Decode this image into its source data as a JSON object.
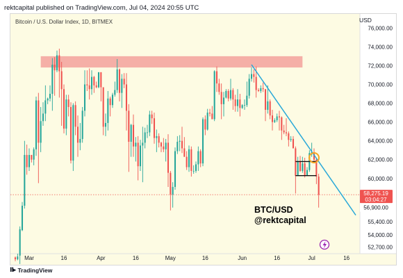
{
  "header": {
    "publish_line": "rektcapital published on TradingView.com, Jul 04, 2024 20:55 UTC"
  },
  "chart_header": {
    "symbol_line": "Bitcoin / U.S. Dollar Index, 1D, BITMEX",
    "currency": "USD"
  },
  "footer": {
    "brand": "TradingView",
    "logo_icon": "tradingview-logo-icon"
  },
  "colors": {
    "bullish": "#26a69a",
    "bearish": "#ef5350",
    "resistance_zone": "#f4a6a0",
    "trendline": "#29a8d8",
    "annotation_circle": "#f5a623",
    "price_label_bg": "#ef5350",
    "chart_background": "#fdfbe3",
    "lightning_badge": "#9c27b0"
  },
  "chart_data": {
    "type": "candlestick",
    "title": "Bitcoin / U.S. Dollar Index, 1D, BITMEX",
    "currency": "USD",
    "x_tick_labels": [
      "Mar",
      "16",
      "Apr",
      "16",
      "May",
      "16",
      "Jun",
      "16",
      "Jul",
      "16"
    ],
    "x_tick_dates": [
      "2024-03-01",
      "2024-03-16",
      "2024-04-01",
      "2024-04-16",
      "2024-05-01",
      "2024-05-16",
      "2024-06-01",
      "2024-06-16",
      "2024-07-01",
      "2024-07-16"
    ],
    "x_range": [
      "2024-02-24",
      "2024-07-20"
    ],
    "y_tick_labels": [
      "76,000.00",
      "74,000.00",
      "72,000.00",
      "70,000.00",
      "68,000.00",
      "66,000.00",
      "64,000.00",
      "62,000.00",
      "60,000.00",
      "55,400.00",
      "54,000.00",
      "52,700.00"
    ],
    "y_tick_values": [
      76000,
      74000,
      72000,
      70000,
      68000,
      66000,
      64000,
      62000,
      60000,
      55400,
      54000,
      52700
    ],
    "ylim": [
      52000,
      77500
    ],
    "grid": false,
    "current_price": {
      "price_label": "58,275.19",
      "countdown": "03:04:27",
      "value": 58275.19
    },
    "low_label": {
      "label": "56,900.00",
      "value": 56900
    },
    "resistance_zone": {
      "y_low": 71800,
      "y_high": 73000,
      "x_start": "2024-03-06",
      "x_end": "2024-06-27"
    },
    "trendline": {
      "start": {
        "date": "2024-06-05",
        "price": 72100
      },
      "end": {
        "date": "2024-07-20",
        "price": 56100
      }
    },
    "range_box": {
      "top": 61800,
      "bottom": 60300,
      "x_start": "2024-06-24",
      "x_end": "2024-07-03"
    },
    "highlight_circle": {
      "date": "2024-07-02",
      "price": 62200
    },
    "annotations": [
      "BTC/USD",
      "@rektcapital"
    ],
    "candles": [
      {
        "d": "2024-02-24",
        "o": 51600,
        "h": 51700,
        "l": 51200,
        "c": 51400
      },
      {
        "d": "2024-02-25",
        "o": 51400,
        "h": 52000,
        "l": 51300,
        "c": 51700
      },
      {
        "d": "2024-02-26",
        "o": 51800,
        "h": 54900,
        "l": 50900,
        "c": 54600
      },
      {
        "d": "2024-02-27",
        "o": 54500,
        "h": 57500,
        "l": 54400,
        "c": 57100
      },
      {
        "d": "2024-02-28",
        "o": 57100,
        "h": 64000,
        "l": 56800,
        "c": 62500
      },
      {
        "d": "2024-02-29",
        "o": 62500,
        "h": 63600,
        "l": 60400,
        "c": 61200
      },
      {
        "d": "2024-03-01",
        "o": 61200,
        "h": 63200,
        "l": 60800,
        "c": 62500
      },
      {
        "d": "2024-03-02",
        "o": 62500,
        "h": 62500,
        "l": 61700,
        "c": 62000
      },
      {
        "d": "2024-03-03",
        "o": 62000,
        "h": 63300,
        "l": 61400,
        "c": 63100
      },
      {
        "d": "2024-03-04",
        "o": 63100,
        "h": 68700,
        "l": 62400,
        "c": 68300
      },
      {
        "d": "2024-03-05",
        "o": 68300,
        "h": 69100,
        "l": 59500,
        "c": 63800
      },
      {
        "d": "2024-03-06",
        "o": 63800,
        "h": 67600,
        "l": 62800,
        "c": 66100
      },
      {
        "d": "2024-03-07",
        "o": 66100,
        "h": 68100,
        "l": 65600,
        "c": 66900
      },
      {
        "d": "2024-03-08",
        "o": 66900,
        "h": 69900,
        "l": 66100,
        "c": 68300
      },
      {
        "d": "2024-03-09",
        "o": 68300,
        "h": 68600,
        "l": 67900,
        "c": 68500
      },
      {
        "d": "2024-03-10",
        "o": 68500,
        "h": 69900,
        "l": 68200,
        "c": 69000
      },
      {
        "d": "2024-03-11",
        "o": 69000,
        "h": 72800,
        "l": 67200,
        "c": 72100
      },
      {
        "d": "2024-03-12",
        "o": 72100,
        "h": 72900,
        "l": 68800,
        "c": 71500
      },
      {
        "d": "2024-03-13",
        "o": 71500,
        "h": 73600,
        "l": 71300,
        "c": 73100
      },
      {
        "d": "2024-03-14",
        "o": 73100,
        "h": 73800,
        "l": 68600,
        "c": 71400
      },
      {
        "d": "2024-03-15",
        "o": 71400,
        "h": 72400,
        "l": 65600,
        "c": 69500
      },
      {
        "d": "2024-03-16",
        "o": 69500,
        "h": 70000,
        "l": 64800,
        "c": 65300
      },
      {
        "d": "2024-03-17",
        "o": 65300,
        "h": 68900,
        "l": 64600,
        "c": 68400
      },
      {
        "d": "2024-03-18",
        "o": 68400,
        "h": 68900,
        "l": 66600,
        "c": 67600
      },
      {
        "d": "2024-03-19",
        "o": 67600,
        "h": 68100,
        "l": 61600,
        "c": 61900
      },
      {
        "d": "2024-03-20",
        "o": 61900,
        "h": 68000,
        "l": 60800,
        "c": 67800
      },
      {
        "d": "2024-03-21",
        "o": 67800,
        "h": 68200,
        "l": 64600,
        "c": 65500
      },
      {
        "d": "2024-03-22",
        "o": 65500,
        "h": 66700,
        "l": 62300,
        "c": 63800
      },
      {
        "d": "2024-03-23",
        "o": 63800,
        "h": 65900,
        "l": 63000,
        "c": 64200
      },
      {
        "d": "2024-03-24",
        "o": 64200,
        "h": 67600,
        "l": 63800,
        "c": 67200
      },
      {
        "d": "2024-03-25",
        "o": 67200,
        "h": 71500,
        "l": 66600,
        "c": 70000
      },
      {
        "d": "2024-03-26",
        "o": 70000,
        "h": 71500,
        "l": 69300,
        "c": 69900
      },
      {
        "d": "2024-03-27",
        "o": 69900,
        "h": 71700,
        "l": 68400,
        "c": 69500
      },
      {
        "d": "2024-03-28",
        "o": 69500,
        "h": 71500,
        "l": 68900,
        "c": 70800
      },
      {
        "d": "2024-03-29",
        "o": 70800,
        "h": 70900,
        "l": 69100,
        "c": 69900
      },
      {
        "d": "2024-03-30",
        "o": 69900,
        "h": 70300,
        "l": 69600,
        "c": 69700
      },
      {
        "d": "2024-03-31",
        "o": 69700,
        "h": 71300,
        "l": 69600,
        "c": 71300
      },
      {
        "d": "2024-04-01",
        "o": 71300,
        "h": 71300,
        "l": 68200,
        "c": 69700
      },
      {
        "d": "2024-04-02",
        "o": 69700,
        "h": 69700,
        "l": 64600,
        "c": 65500
      },
      {
        "d": "2024-04-03",
        "o": 65500,
        "h": 66900,
        "l": 64500,
        "c": 65900
      },
      {
        "d": "2024-04-04",
        "o": 65900,
        "h": 69300,
        "l": 65100,
        "c": 68500
      },
      {
        "d": "2024-04-05",
        "o": 68500,
        "h": 68700,
        "l": 66600,
        "c": 67800
      },
      {
        "d": "2024-04-06",
        "o": 67800,
        "h": 69100,
        "l": 67500,
        "c": 68900
      },
      {
        "d": "2024-04-07",
        "o": 68900,
        "h": 70300,
        "l": 68700,
        "c": 69400
      },
      {
        "d": "2024-04-08",
        "o": 69400,
        "h": 72700,
        "l": 69100,
        "c": 71600
      },
      {
        "d": "2024-04-09",
        "o": 71600,
        "h": 71700,
        "l": 68200,
        "c": 69100
      },
      {
        "d": "2024-04-10",
        "o": 69100,
        "h": 71100,
        "l": 67500,
        "c": 70600
      },
      {
        "d": "2024-04-11",
        "o": 70600,
        "h": 71200,
        "l": 69600,
        "c": 70000
      },
      {
        "d": "2024-04-12",
        "o": 70000,
        "h": 71200,
        "l": 65100,
        "c": 67200
      },
      {
        "d": "2024-04-13",
        "o": 67200,
        "h": 67900,
        "l": 60700,
        "c": 63900
      },
      {
        "d": "2024-04-14",
        "o": 63900,
        "h": 65800,
        "l": 62300,
        "c": 65700
      },
      {
        "d": "2024-04-15",
        "o": 65700,
        "h": 66800,
        "l": 62300,
        "c": 63400
      },
      {
        "d": "2024-04-16",
        "o": 63400,
        "h": 64400,
        "l": 61800,
        "c": 63800
      },
      {
        "d": "2024-04-17",
        "o": 63800,
        "h": 64500,
        "l": 59800,
        "c": 61300
      },
      {
        "d": "2024-04-18",
        "o": 61300,
        "h": 64100,
        "l": 60800,
        "c": 63500
      },
      {
        "d": "2024-04-19",
        "o": 63500,
        "h": 65500,
        "l": 59600,
        "c": 63800
      },
      {
        "d": "2024-04-20",
        "o": 63800,
        "h": 65400,
        "l": 63200,
        "c": 64900
      },
      {
        "d": "2024-04-21",
        "o": 64900,
        "h": 65700,
        "l": 64300,
        "c": 64900
      },
      {
        "d": "2024-04-22",
        "o": 64900,
        "h": 67200,
        "l": 64500,
        "c": 66800
      },
      {
        "d": "2024-04-23",
        "o": 66800,
        "h": 67200,
        "l": 65800,
        "c": 66400
      },
      {
        "d": "2024-04-24",
        "o": 66400,
        "h": 67000,
        "l": 63700,
        "c": 64300
      },
      {
        "d": "2024-04-25",
        "o": 64300,
        "h": 65200,
        "l": 62800,
        "c": 64500
      },
      {
        "d": "2024-04-26",
        "o": 64500,
        "h": 64800,
        "l": 63300,
        "c": 63800
      },
      {
        "d": "2024-04-27",
        "o": 63800,
        "h": 63900,
        "l": 62800,
        "c": 63400
      },
      {
        "d": "2024-04-28",
        "o": 63400,
        "h": 64300,
        "l": 62800,
        "c": 63100
      },
      {
        "d": "2024-04-29",
        "o": 63100,
        "h": 64200,
        "l": 61800,
        "c": 63800
      },
      {
        "d": "2024-04-30",
        "o": 63800,
        "h": 64700,
        "l": 59100,
        "c": 60600
      },
      {
        "d": "2024-05-01",
        "o": 60600,
        "h": 60800,
        "l": 56600,
        "c": 58300
      },
      {
        "d": "2024-05-02",
        "o": 58300,
        "h": 59600,
        "l": 56900,
        "c": 59100
      },
      {
        "d": "2024-05-03",
        "o": 59100,
        "h": 63300,
        "l": 58800,
        "c": 62900
      },
      {
        "d": "2024-05-04",
        "o": 62900,
        "h": 64500,
        "l": 62600,
        "c": 63900
      },
      {
        "d": "2024-05-05",
        "o": 63900,
        "h": 64600,
        "l": 62900,
        "c": 64000
      },
      {
        "d": "2024-05-06",
        "o": 64000,
        "h": 65500,
        "l": 62700,
        "c": 63200
      },
      {
        "d": "2024-05-07",
        "o": 63200,
        "h": 64400,
        "l": 62300,
        "c": 62300
      },
      {
        "d": "2024-05-08",
        "o": 62300,
        "h": 62900,
        "l": 60900,
        "c": 61200
      },
      {
        "d": "2024-05-09",
        "o": 61200,
        "h": 63500,
        "l": 60700,
        "c": 63100
      },
      {
        "d": "2024-05-10",
        "o": 63100,
        "h": 63400,
        "l": 60200,
        "c": 60800
      },
      {
        "d": "2024-05-11",
        "o": 60800,
        "h": 61400,
        "l": 60500,
        "c": 60800
      },
      {
        "d": "2024-05-12",
        "o": 60800,
        "h": 61800,
        "l": 60600,
        "c": 61500
      },
      {
        "d": "2024-05-13",
        "o": 61500,
        "h": 63400,
        "l": 60800,
        "c": 62900
      },
      {
        "d": "2024-05-14",
        "o": 62900,
        "h": 63100,
        "l": 61200,
        "c": 61600
      },
      {
        "d": "2024-05-15",
        "o": 61600,
        "h": 66500,
        "l": 61300,
        "c": 66300
      },
      {
        "d": "2024-05-16",
        "o": 66300,
        "h": 66700,
        "l": 64600,
        "c": 65200
      },
      {
        "d": "2024-05-17",
        "o": 65200,
        "h": 67400,
        "l": 65100,
        "c": 67000
      },
      {
        "d": "2024-05-18",
        "o": 67000,
        "h": 67400,
        "l": 66600,
        "c": 66900
      },
      {
        "d": "2024-05-19",
        "o": 66900,
        "h": 67700,
        "l": 66300,
        "c": 66300
      },
      {
        "d": "2024-05-20",
        "o": 66300,
        "h": 71500,
        "l": 66100,
        "c": 71400
      },
      {
        "d": "2024-05-21",
        "o": 71400,
        "h": 71900,
        "l": 69200,
        "c": 70100
      },
      {
        "d": "2024-05-22",
        "o": 70100,
        "h": 70600,
        "l": 68900,
        "c": 69200
      },
      {
        "d": "2024-05-23",
        "o": 69200,
        "h": 70100,
        "l": 66300,
        "c": 67900
      },
      {
        "d": "2024-05-24",
        "o": 67900,
        "h": 69200,
        "l": 66600,
        "c": 68600
      },
      {
        "d": "2024-05-25",
        "o": 68600,
        "h": 69500,
        "l": 68500,
        "c": 69300
      },
      {
        "d": "2024-05-26",
        "o": 69300,
        "h": 69500,
        "l": 68200,
        "c": 68500
      },
      {
        "d": "2024-05-27",
        "o": 68500,
        "h": 70600,
        "l": 68300,
        "c": 69400
      },
      {
        "d": "2024-05-28",
        "o": 69400,
        "h": 69600,
        "l": 67300,
        "c": 68400
      },
      {
        "d": "2024-05-29",
        "o": 68400,
        "h": 68900,
        "l": 67100,
        "c": 67700
      },
      {
        "d": "2024-05-30",
        "o": 67700,
        "h": 69500,
        "l": 67100,
        "c": 68400
      },
      {
        "d": "2024-05-31",
        "o": 68400,
        "h": 69000,
        "l": 66600,
        "c": 67500
      },
      {
        "d": "2024-06-01",
        "o": 67500,
        "h": 67900,
        "l": 67400,
        "c": 67800
      },
      {
        "d": "2024-06-02",
        "o": 67800,
        "h": 68400,
        "l": 67300,
        "c": 67800
      },
      {
        "d": "2024-06-03",
        "o": 67800,
        "h": 70300,
        "l": 67600,
        "c": 68800
      },
      {
        "d": "2024-06-04",
        "o": 68800,
        "h": 71100,
        "l": 68500,
        "c": 70600
      },
      {
        "d": "2024-06-05",
        "o": 70600,
        "h": 71800,
        "l": 70300,
        "c": 71100
      },
      {
        "d": "2024-06-06",
        "o": 71100,
        "h": 71600,
        "l": 70200,
        "c": 70800
      },
      {
        "d": "2024-06-07",
        "o": 70800,
        "h": 71900,
        "l": 68600,
        "c": 69400
      },
      {
        "d": "2024-06-08",
        "o": 69400,
        "h": 69600,
        "l": 69200,
        "c": 69300
      },
      {
        "d": "2024-06-09",
        "o": 69300,
        "h": 69900,
        "l": 69100,
        "c": 69600
      },
      {
        "d": "2024-06-10",
        "o": 69600,
        "h": 70200,
        "l": 69200,
        "c": 69500
      },
      {
        "d": "2024-06-11",
        "o": 69500,
        "h": 69500,
        "l": 66100,
        "c": 67300
      },
      {
        "d": "2024-06-12",
        "o": 67300,
        "h": 69900,
        "l": 66900,
        "c": 68200
      },
      {
        "d": "2024-06-13",
        "o": 68200,
        "h": 68400,
        "l": 66300,
        "c": 66700
      },
      {
        "d": "2024-06-14",
        "o": 66700,
        "h": 67300,
        "l": 65100,
        "c": 66000
      },
      {
        "d": "2024-06-15",
        "o": 66000,
        "h": 66400,
        "l": 65900,
        "c": 66200
      },
      {
        "d": "2024-06-16",
        "o": 66200,
        "h": 66900,
        "l": 66000,
        "c": 66600
      },
      {
        "d": "2024-06-17",
        "o": 66600,
        "h": 67200,
        "l": 65100,
        "c": 66500
      },
      {
        "d": "2024-06-18",
        "o": 66500,
        "h": 66600,
        "l": 64100,
        "c": 65100
      },
      {
        "d": "2024-06-19",
        "o": 65100,
        "h": 65700,
        "l": 64700,
        "c": 64900
      },
      {
        "d": "2024-06-20",
        "o": 64900,
        "h": 66400,
        "l": 64500,
        "c": 64800
      },
      {
        "d": "2024-06-21",
        "o": 64800,
        "h": 65000,
        "l": 63400,
        "c": 64100
      },
      {
        "d": "2024-06-22",
        "o": 64100,
        "h": 64500,
        "l": 63900,
        "c": 64200
      },
      {
        "d": "2024-06-23",
        "o": 64200,
        "h": 64500,
        "l": 63200,
        "c": 63200
      },
      {
        "d": "2024-06-24",
        "o": 63200,
        "h": 63400,
        "l": 58400,
        "c": 60300
      },
      {
        "d": "2024-06-25",
        "o": 60300,
        "h": 62300,
        "l": 60300,
        "c": 61800
      },
      {
        "d": "2024-06-26",
        "o": 61800,
        "h": 62400,
        "l": 60700,
        "c": 60800
      },
      {
        "d": "2024-06-27",
        "o": 60800,
        "h": 62300,
        "l": 60600,
        "c": 61600
      },
      {
        "d": "2024-06-28",
        "o": 61600,
        "h": 62200,
        "l": 60100,
        "c": 60300
      },
      {
        "d": "2024-06-29",
        "o": 60300,
        "h": 61200,
        "l": 60300,
        "c": 60900
      },
      {
        "d": "2024-06-30",
        "o": 60900,
        "h": 63000,
        "l": 60700,
        "c": 62700
      },
      {
        "d": "2024-07-01",
        "o": 62700,
        "h": 63800,
        "l": 62300,
        "c": 62800
      },
      {
        "d": "2024-07-02",
        "o": 62800,
        "h": 63200,
        "l": 61800,
        "c": 62000
      },
      {
        "d": "2024-07-03",
        "o": 62000,
        "h": 62200,
        "l": 59400,
        "c": 60200
      },
      {
        "d": "2024-07-04",
        "o": 60200,
        "h": 60500,
        "l": 56900,
        "c": 58275
      }
    ]
  }
}
